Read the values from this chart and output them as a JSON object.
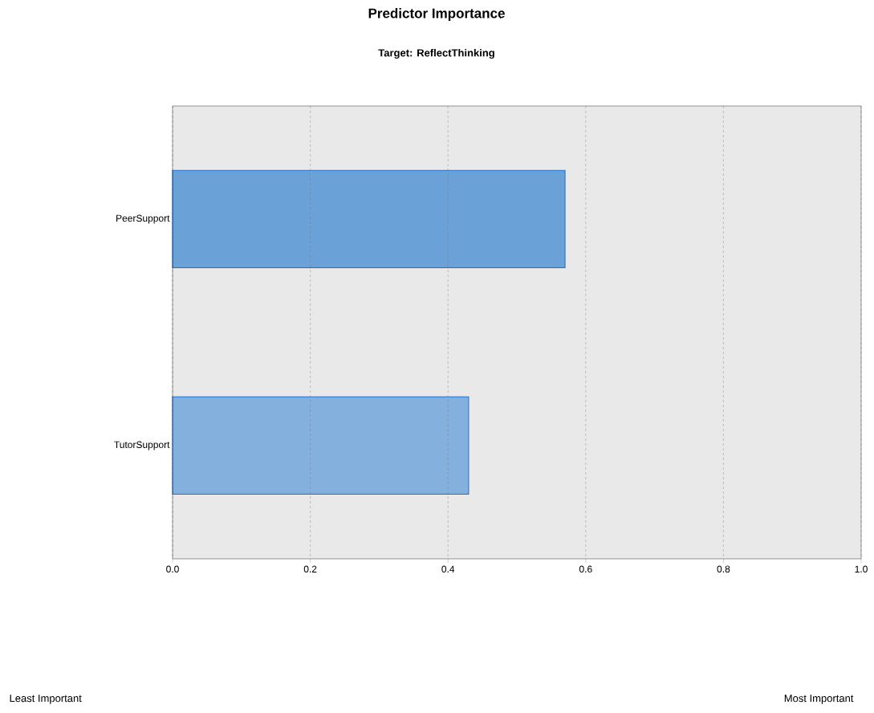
{
  "chart_data": {
    "type": "bar",
    "orientation": "horizontal",
    "title": "Predictor Importance",
    "subtitle": "Target: ReflectThinking",
    "categories": [
      "PeerSupport",
      "TutorSupport"
    ],
    "values": [
      0.57,
      0.43
    ],
    "colors": [
      "#6aa2d8",
      "#84b0de"
    ],
    "xlim": [
      0,
      1
    ],
    "xticks": [
      {
        "value": 0,
        "label": "0.0"
      },
      0.2,
      0.4,
      0.6,
      0.8,
      {
        "value": 1,
        "label": "1.0"
      }
    ],
    "grid": "x",
    "annotations": [
      "Least Important",
      "Most Important"
    ]
  }
}
